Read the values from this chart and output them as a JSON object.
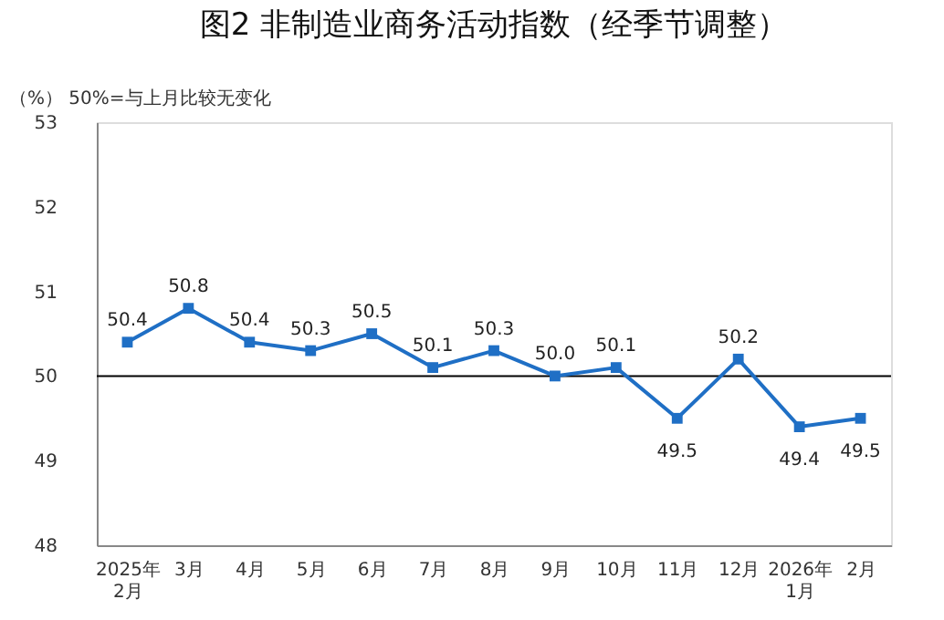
{
  "chart_data": {
    "type": "line",
    "title": "图2 非制造业商务活动指数（经季节调整）",
    "ylabel": "（%）",
    "annotations": [
      "50%=与上月比较无变化"
    ],
    "categories": [
      "2025年\n2月",
      "3月",
      "4月",
      "5月",
      "6月",
      "7月",
      "8月",
      "9月",
      "10月",
      "11月",
      "12月",
      "2026年\n1月",
      "2月"
    ],
    "series": [
      {
        "color": "#1f6fc5",
        "values": [
          50.4,
          50.8,
          50.4,
          50.3,
          50.5,
          50.1,
          50.3,
          50.0,
          50.1,
          49.5,
          50.2,
          49.4,
          49.5
        ]
      }
    ],
    "ylim": [
      48,
      53
    ],
    "yticks": [
      48,
      49,
      50,
      51,
      52,
      53
    ],
    "ref_lines": [
      {
        "axis": "y",
        "value": 50,
        "color": "#000000"
      }
    ],
    "value_labels": [
      "50.4",
      "50.8",
      "50.4",
      "50.3",
      "50.5",
      "50.1",
      "50.3",
      "50.0",
      "50.1",
      "49.5",
      "50.2",
      "49.4",
      "49.5"
    ],
    "marker": "square",
    "line_style": "solid",
    "grid": false
  }
}
